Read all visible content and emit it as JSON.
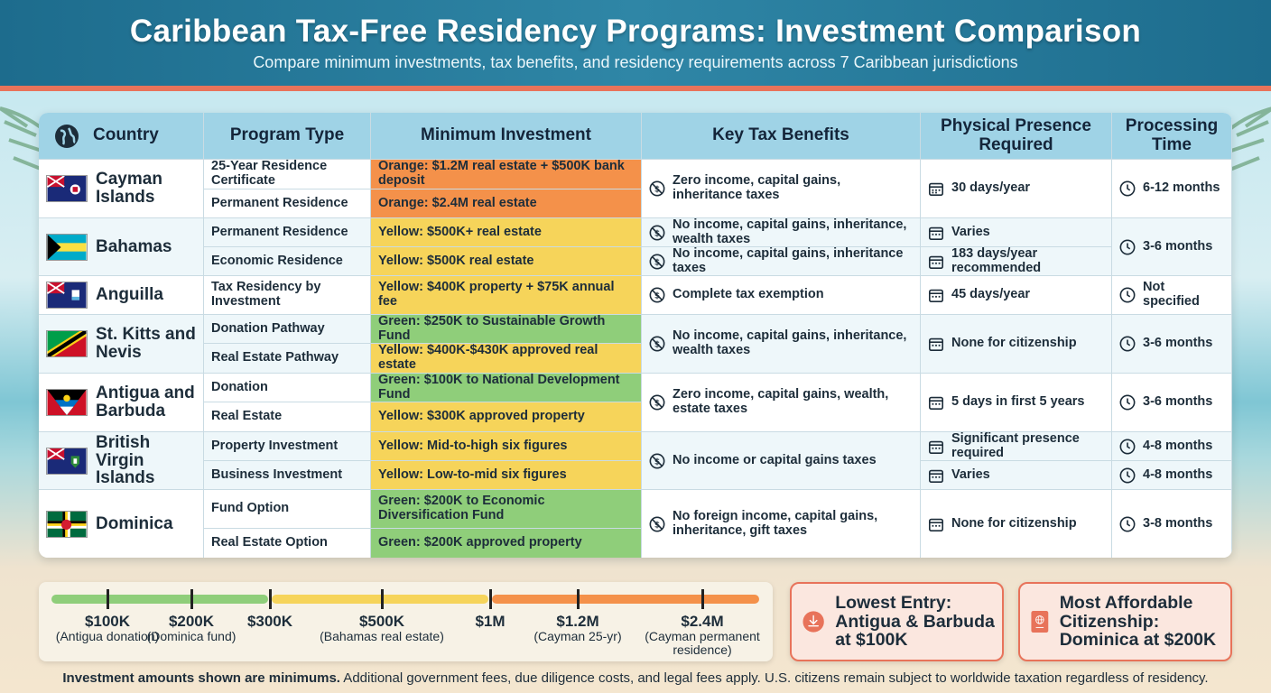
{
  "header": {
    "title": "Caribbean Tax-Free Residency Programs: Investment Comparison",
    "subtitle": "Compare minimum investments, tax benefits, and residency requirements across 7 Caribbean jurisdictions"
  },
  "columns": [
    "Country",
    "Program Type",
    "Minimum Investment",
    "Key Tax Benefits",
    "Physical Presence Required",
    "Processing Time"
  ],
  "rows": {
    "cayman": {
      "country": "Cayman Islands",
      "prog1": "25-Year Residence Certificate",
      "prog2": "Permanent Residence",
      "inv1": "Orange: $1.2M real estate + $500K bank deposit",
      "inv2": "Orange: $2.4M real estate",
      "tax": "Zero income, capital gains, inheritance taxes",
      "presence": "30 days/year",
      "time": "6-12 months"
    },
    "bahamas": {
      "country": "Bahamas",
      "prog1": "Permanent Residence",
      "prog2": "Economic Residence",
      "inv1": "Yellow: $500K+ real estate",
      "inv2": "Yellow: $500K real estate",
      "tax1": "No income, capital gains, inheritance, wealth taxes",
      "tax2": "No income, capital gains, inheritance taxes",
      "presence1": "Varies",
      "presence2": "183 days/year recommended",
      "time": "3-6 months"
    },
    "anguilla": {
      "country": "Anguilla",
      "prog1": "Tax Residency by Investment",
      "inv1": "Yellow: $400K property + $75K annual fee",
      "tax": "Complete tax exemption",
      "presence": "45 days/year",
      "time": "Not specified"
    },
    "stkitts": {
      "country": "St. Kitts and Nevis",
      "prog1": "Donation Pathway",
      "prog2": "Real Estate Pathway",
      "inv1": "Green: $250K to Sustainable Growth Fund",
      "inv2": "Yellow: $400K-$430K approved real estate",
      "tax": "No income, capital gains, inheritance, wealth taxes",
      "presence": "None for citizenship",
      "time": "3-6 months"
    },
    "antigua": {
      "country": "Antigua and Barbuda",
      "prog1": "Donation",
      "prog2": "Real Estate",
      "inv1": "Green: $100K to National Development Fund",
      "inv2": "Yellow: $300K approved property",
      "tax": "Zero income, capital gains, wealth, estate taxes",
      "presence": "5 days in first 5 years",
      "time": "3-6 months"
    },
    "bvi": {
      "country": "British Virgin Islands",
      "prog1": "Property Investment",
      "prog2": "Business Investment",
      "inv1": "Yellow: Mid-to-high six figures",
      "inv2": "Yellow: Low-to-mid six figures",
      "tax": "No income or capital gains taxes",
      "presence1": "Significant presence required",
      "presence2": "Varies",
      "time1": "4-8 months",
      "time2": "4-8 months"
    },
    "dominica": {
      "country": "Dominica",
      "prog1": "Fund Option",
      "prog2": "Real Estate Option",
      "inv1": "Green: $200K to Economic Diversification Fund",
      "inv2": "Green: $200K approved property",
      "tax": "No foreign income, capital gains, inheritance, gift taxes",
      "presence": "None for citizenship",
      "time": "3-8 months"
    }
  },
  "scale": {
    "marks": [
      {
        "label": "$100K",
        "sub": "(Antigua donation)"
      },
      {
        "label": "$200K",
        "sub": "(Dominica fund)"
      },
      {
        "label": "$300K",
        "sub": ""
      },
      {
        "label": "$500K",
        "sub": "(Bahamas real estate)"
      },
      {
        "label": "$1M",
        "sub": ""
      },
      {
        "label": "$1.2M",
        "sub": "(Cayman 25-yr)"
      },
      {
        "label": "$2.4M",
        "sub": "(Cayman permanent residence)"
      }
    ]
  },
  "cards": {
    "lowest": "Lowest Entry: Antigua & Barbuda at $100K",
    "affordable": "Most Affordable Citizenship: Dominica at $200K"
  },
  "footer": {
    "bold": "Investment amounts shown are minimums.",
    "rest": " Additional government fees, due diligence costs, and legal fees apply. U.S. citizens remain subject to worldwide taxation regardless of residency."
  },
  "colors": {
    "orange": "#f4914a",
    "yellow": "#f6d45a",
    "green": "#8fce7a",
    "accent": "#e8735a"
  }
}
